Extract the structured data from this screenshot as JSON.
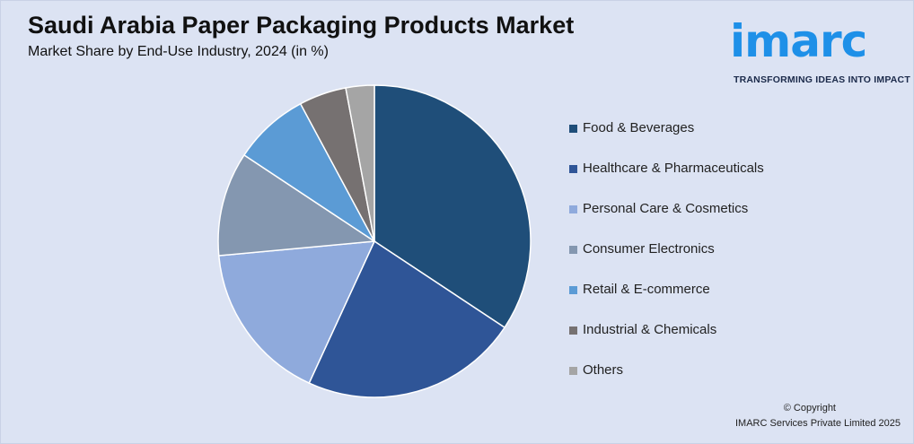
{
  "chart_data": {
    "type": "pie",
    "title": "Saudi Arabia Paper Packaging Products Market",
    "subtitle": "Market Share by End-Use Industry, 2024 (in %)",
    "legend_position": "right",
    "slices": [
      {
        "label": "Food & Beverages",
        "value": 35,
        "color": "#1f4e79"
      },
      {
        "label": "Healthcare & Pharmaceuticals",
        "value": 23,
        "color": "#2f5597"
      },
      {
        "label": "Personal Care & Cosmetics",
        "value": 17,
        "color": "#8faadc"
      },
      {
        "label": "Consumer Electronics",
        "value": 11,
        "color": "#8497b0"
      },
      {
        "label": "Retail & E-commerce",
        "value": 8,
        "color": "#5b9bd5"
      },
      {
        "label": "Industrial & Chemicals",
        "value": 5,
        "color": "#767171"
      },
      {
        "label": "Others",
        "value": 3,
        "color": "#a5a5a5"
      }
    ]
  },
  "logo": {
    "word": "imarc",
    "tagline": "TRANSFORMING IDEAS INTO IMPACT",
    "color": "#1e90e8"
  },
  "footer": {
    "copyright_line1": "© Copyright",
    "copyright_line2": "IMARC Services Private Limited 2025"
  }
}
